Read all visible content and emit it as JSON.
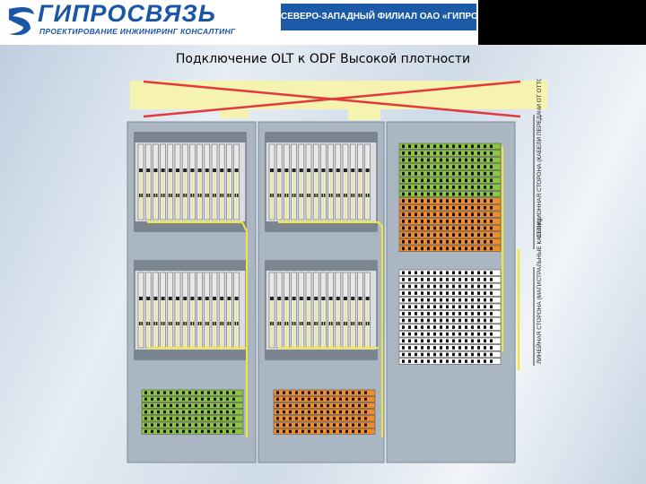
{
  "header": {
    "logo_text": "ГИПРОСВЯЗЬ",
    "logo_tagline": "ПРОЕКТИРОВАНИЕ ИНЖИНИРИНГ КОНСАЛТИНГ",
    "banner_text": "СЕВЕРО-ЗАПАДНЫЙ ФИЛИАЛ ОАО «ГИПРОСВЯЗЬ»"
  },
  "slide": {
    "title": "Подключение OLT к ODF Высокой плотности"
  },
  "diagram": {
    "side_label_station": "СТАНЦИОННАЯ СТОРОНА (КАБЕЛИ ПЕРЕДАЧИ ОТ ОТТОЙКИ OLT)",
    "side_label_line": "ЛИНЕЙНАЯ СТОРОНА (МАГИСТРАЛЬНЫЕ КАБЕЛИ)",
    "colors": {
      "crossout": "#e23a3a",
      "rack": "#aab6c2",
      "panel_green": "#8cc63f",
      "panel_orange": "#f28c28",
      "panel_white": "#ffffff",
      "fiber": "#f3e53a",
      "olt_card": "#e8e8e8"
    }
  }
}
